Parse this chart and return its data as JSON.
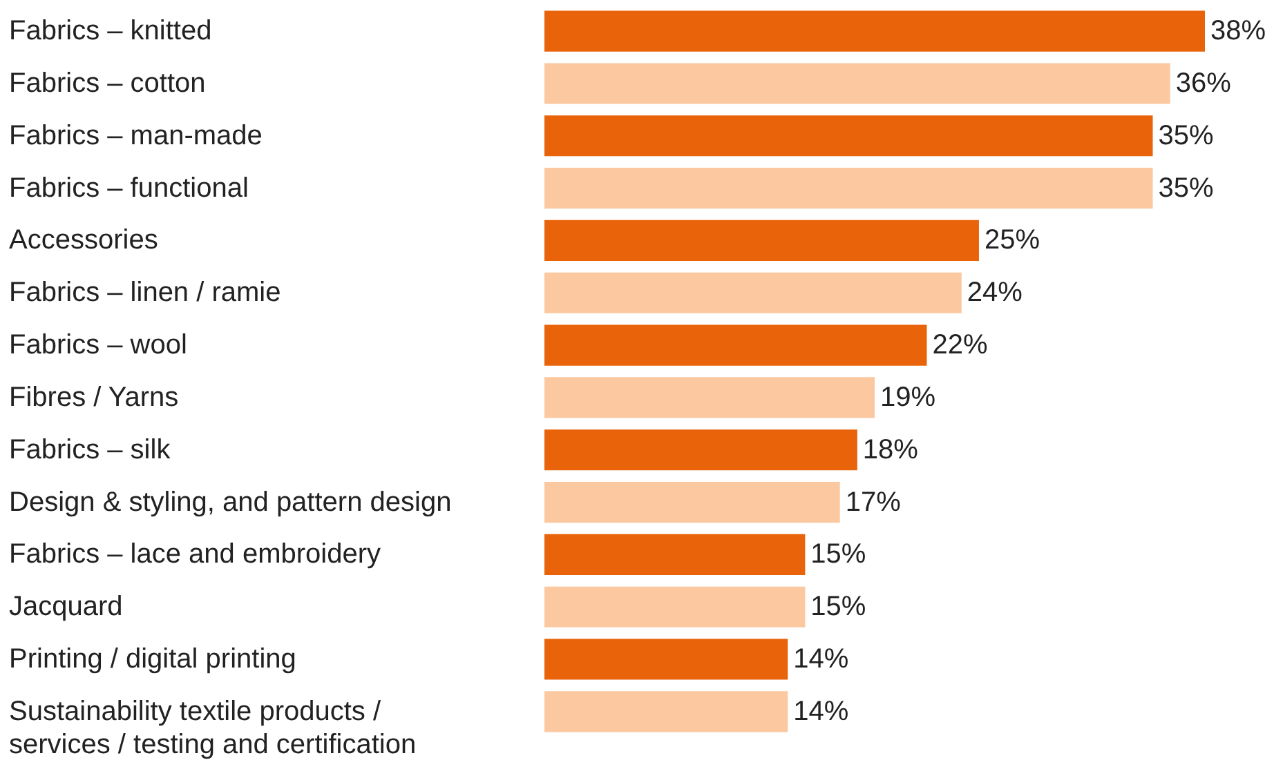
{
  "chart_data": {
    "type": "bar",
    "orientation": "horizontal",
    "categories": [
      "Fabrics – knitted",
      "Fabrics – cotton",
      "Fabrics – man-made",
      "Fabrics – functional",
      "Accessories",
      "Fabrics – linen / ramie",
      "Fabrics – wool",
      "Fibres / Yarns",
      "Fabrics – silk",
      "Design & styling, and pattern design",
      "Fabrics – lace and embroidery",
      "Jacquard",
      "Printing / digital printing",
      "Sustainability textile products /\nservices / testing and certification"
    ],
    "values": [
      38,
      36,
      35,
      35,
      25,
      24,
      22,
      19,
      18,
      17,
      15,
      15,
      14,
      14
    ],
    "colors": [
      "#e8630a",
      "#fbc8a0",
      "#e8630a",
      "#fbc8a0",
      "#e8630a",
      "#fbc8a0",
      "#e8630a",
      "#fbc8a0",
      "#e8630a",
      "#fbc8a0",
      "#e8630a",
      "#fbc8a0",
      "#e8630a",
      "#fbc8a0"
    ],
    "value_labels": [
      "38%",
      "36%",
      "35%",
      "35%",
      "25%",
      "24%",
      "22%",
      "19%",
      "18%",
      "17%",
      "15%",
      "15%",
      "14%",
      "14%"
    ]
  }
}
